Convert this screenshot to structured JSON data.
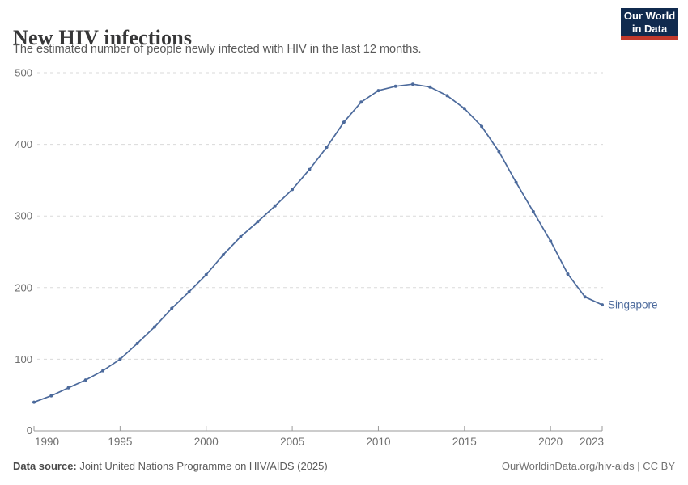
{
  "header": {
    "title": "New HIV infections",
    "subtitle": "The estimated number of people newly infected with HIV in the last 12 months.",
    "logo": {
      "line1": "Our World",
      "line2": "in Data"
    }
  },
  "chart_data": {
    "type": "line",
    "title": "New HIV infections",
    "series": [
      {
        "name": "Singapore",
        "color": "#4C6A9C",
        "x": [
          1990,
          1991,
          1992,
          1993,
          1994,
          1995,
          1996,
          1997,
          1998,
          1999,
          2000,
          2001,
          2002,
          2003,
          2004,
          2005,
          2006,
          2007,
          2008,
          2009,
          2010,
          2011,
          2012,
          2013,
          2014,
          2015,
          2016,
          2017,
          2018,
          2019,
          2020,
          2021,
          2022,
          2023
        ],
        "values": [
          40,
          49,
          60,
          71,
          84,
          100,
          122,
          145,
          171,
          194,
          218,
          246,
          271,
          292,
          314,
          337,
          365,
          396,
          431,
          459,
          475,
          481,
          484,
          480,
          468,
          450,
          425,
          390,
          347,
          306,
          265,
          219,
          187,
          176
        ]
      }
    ],
    "xlabel": "",
    "ylabel": "",
    "xlim": [
      1990,
      2023
    ],
    "ylim": [
      0,
      500
    ],
    "x_ticks": [
      1990,
      1995,
      2000,
      2005,
      2010,
      2015,
      2020,
      2023
    ],
    "y_ticks": [
      0,
      100,
      200,
      300,
      400,
      500
    ],
    "grid": "horizontal-dashed",
    "legend_position": "end-of-line-label"
  },
  "footer": {
    "source_label": "Data source:",
    "source_text": " Joint United Nations Programme on HIV/AIDS (2025)",
    "credit": "OurWorldinData.org/hiv-aids | CC BY"
  },
  "colors": {
    "series_blue": "#4C6A9C",
    "gridline": "#dadada",
    "axis": "#9a9a9a",
    "tick_label": "#6e6e6e",
    "logo_bg": "#102A4E",
    "logo_red": "#C1392B"
  }
}
